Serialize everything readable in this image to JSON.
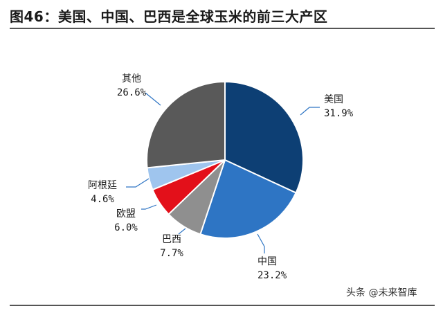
{
  "title": "图46：美国、中国、巴西是全球玉米的前三大产区",
  "watermark": "头条 @未来智库",
  "chart_data": {
    "type": "pie",
    "title": "图46：美国、中国、巴西是全球玉米的前三大产区",
    "slices": [
      {
        "label": "美国",
        "value": 31.9,
        "display": "31.9%",
        "color": "#0d3f74"
      },
      {
        "label": "中国",
        "value": 23.2,
        "display": "23.2%",
        "color": "#2e75c4"
      },
      {
        "label": "巴西",
        "value": 7.7,
        "display": "7.7%",
        "color": "#8f8f8f"
      },
      {
        "label": "欧盟",
        "value": 6.0,
        "display": "6.0%",
        "color": "#e3101a"
      },
      {
        "label": "阿根廷",
        "value": 4.6,
        "display": "4.6%",
        "color": "#9fc5ee"
      },
      {
        "label": "其他",
        "value": 26.6,
        "display": "26.6%",
        "color": "#595959"
      }
    ]
  }
}
